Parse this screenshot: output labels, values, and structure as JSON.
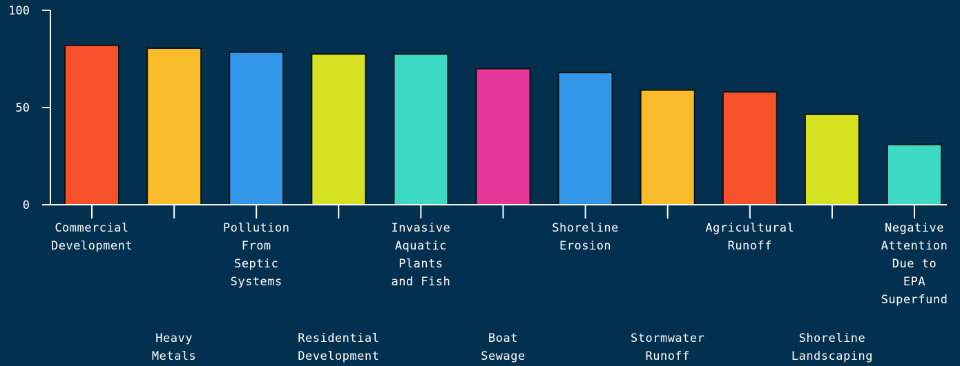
{
  "colors": {
    "background": "#03304f",
    "axis": "#ffffff",
    "bar_stroke": "#111111",
    "palette": [
      "#f7512c",
      "#f8bb29",
      "#3296e9",
      "#d5e121",
      "#3cdac4",
      "#e43799"
    ]
  },
  "chart_data": {
    "type": "bar",
    "title": "",
    "xlabel": "",
    "ylabel": "",
    "ylim": [
      0,
      100
    ],
    "yticks": [
      "0",
      "50",
      "100"
    ],
    "grid": false,
    "categories": [
      "Commercial Development",
      "Heavy Metals",
      "Pollution From Septic Systems",
      "Residential Development",
      "Invasive Aquatic Plants and Fish",
      "Boat Sewage",
      "Shoreline Erosion",
      "Stormwater Runoff",
      "Agricultural Runoff",
      "Shoreline Landscaping",
      "Negative Attention Due to EPA Superfund"
    ],
    "label_lines": [
      [
        "Commercial",
        "Development"
      ],
      [
        "Heavy",
        "Metals"
      ],
      [
        "Pollution",
        "From",
        "Septic",
        "Systems"
      ],
      [
        "Residential",
        "Development"
      ],
      [
        "Invasive",
        "Aquatic",
        "Plants",
        "and Fish"
      ],
      [
        "Boat",
        "Sewage"
      ],
      [
        "Shoreline",
        "Erosion"
      ],
      [
        "Stormwater",
        "Runoff"
      ],
      [
        "Agricultural",
        "Runoff"
      ],
      [
        "Shoreline",
        "Landscaping"
      ],
      [
        "Negative",
        "Attention",
        "Due to",
        "EPA",
        "Superfund"
      ]
    ],
    "values": [
      82,
      80.5,
      78.5,
      77.5,
      77.5,
      70,
      68,
      59,
      58,
      46.5,
      31
    ],
    "bar_colors": [
      "#f7512c",
      "#f8bb29",
      "#3296e9",
      "#d5e121",
      "#3cdac4",
      "#e43799",
      "#3296e9",
      "#f8bb29",
      "#f7512c",
      "#d5e121",
      "#3cdac4"
    ]
  }
}
